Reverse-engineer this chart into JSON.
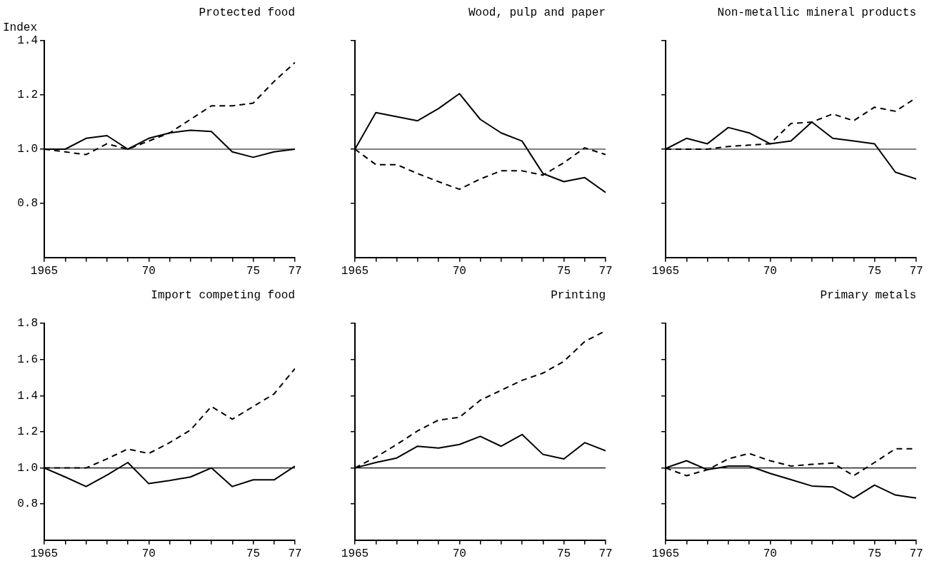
{
  "chart_data": [
    {
      "type": "line",
      "title": "Protected food",
      "ylabel": "Index",
      "x": [
        1965,
        1966,
        1967,
        1968,
        1969,
        1970,
        1971,
        1972,
        1973,
        1974,
        1975,
        1976,
        1977
      ],
      "xlim": [
        1965,
        1977
      ],
      "xticks": [
        {
          "value": 1965,
          "label": "1965"
        },
        {
          "value": 1966,
          "label": null
        },
        {
          "value": 1967,
          "label": null
        },
        {
          "value": 1968,
          "label": null
        },
        {
          "value": 1969,
          "label": null
        },
        {
          "value": 1970,
          "label": "70"
        },
        {
          "value": 1971,
          "label": null
        },
        {
          "value": 1972,
          "label": null
        },
        {
          "value": 1973,
          "label": null
        },
        {
          "value": 1974,
          "label": null
        },
        {
          "value": 1975,
          "label": "75"
        },
        {
          "value": 1976,
          "label": null
        },
        {
          "value": 1977,
          "label": "77"
        }
      ],
      "ylim": [
        0.6,
        1.4
      ],
      "yticks": [
        0.8,
        {
          "value": 1.0,
          "label": "1.0"
        },
        1.2,
        1.4
      ],
      "grid": false,
      "marker": "none",
      "ref_lines": [
        {
          "axis": "y",
          "value": 1.0,
          "color": "#000000"
        }
      ],
      "series": [
        {
          "color": "#000000",
          "line_style": "solid",
          "values": [
            1.0,
            1.0,
            1.04,
            1.05,
            1.0,
            1.04,
            1.06,
            1.07,
            1.065,
            0.99,
            0.97,
            0.99,
            1.0
          ]
        },
        {
          "color": "#000000",
          "line_style": "dashed",
          "values": [
            1.0,
            0.99,
            0.98,
            1.02,
            1.0,
            1.03,
            1.06,
            1.11,
            1.16,
            1.16,
            1.17,
            1.25,
            1.32
          ]
        }
      ]
    },
    {
      "type": "line",
      "title": "Wood, pulp and paper",
      "x": [
        1965,
        1966,
        1967,
        1968,
        1969,
        1970,
        1971,
        1972,
        1973,
        1974,
        1975,
        1976,
        1977
      ],
      "xlim": [
        1965,
        1977
      ],
      "xticks": [
        {
          "value": 1965,
          "label": "1965"
        },
        {
          "value": 1966,
          "label": null
        },
        {
          "value": 1967,
          "label": null
        },
        {
          "value": 1968,
          "label": null
        },
        {
          "value": 1969,
          "label": null
        },
        {
          "value": 1970,
          "label": "70"
        },
        {
          "value": 1971,
          "label": null
        },
        {
          "value": 1972,
          "label": null
        },
        {
          "value": 1973,
          "label": null
        },
        {
          "value": 1974,
          "label": null
        },
        {
          "value": 1975,
          "label": "75"
        },
        {
          "value": 1976,
          "label": null
        },
        {
          "value": 1977,
          "label": "77"
        }
      ],
      "ylim": [
        0.6,
        1.4
      ],
      "yticks": [
        0.8,
        1.0,
        1.2,
        1.4
      ],
      "tick_labels": "x",
      "grid": false,
      "marker": "none",
      "ref_lines": [
        {
          "axis": "y",
          "value": 1.0,
          "color": "#000000"
        }
      ],
      "series": [
        {
          "color": "#000000",
          "line_style": "solid",
          "values": [
            1.0,
            1.135,
            1.12,
            1.105,
            1.15,
            1.205,
            1.11,
            1.06,
            1.03,
            0.91,
            0.88,
            0.895,
            0.84
          ]
        },
        {
          "color": "#000000",
          "line_style": "dashed",
          "values": [
            1.0,
            0.943,
            0.943,
            0.91,
            0.88,
            0.852,
            0.89,
            0.92,
            0.92,
            0.904,
            0.95,
            1.005,
            0.98
          ]
        }
      ]
    },
    {
      "type": "line",
      "title": "Non-metallic mineral products",
      "x": [
        1965,
        1966,
        1967,
        1968,
        1969,
        1970,
        1971,
        1972,
        1973,
        1974,
        1975,
        1976,
        1977
      ],
      "xlim": [
        1965,
        1977
      ],
      "xticks": [
        {
          "value": 1965,
          "label": "1965"
        },
        {
          "value": 1966,
          "label": null
        },
        {
          "value": 1967,
          "label": null
        },
        {
          "value": 1968,
          "label": null
        },
        {
          "value": 1969,
          "label": null
        },
        {
          "value": 1970,
          "label": "70"
        },
        {
          "value": 1971,
          "label": null
        },
        {
          "value": 1972,
          "label": null
        },
        {
          "value": 1973,
          "label": null
        },
        {
          "value": 1974,
          "label": null
        },
        {
          "value": 1975,
          "label": "75"
        },
        {
          "value": 1976,
          "label": null
        },
        {
          "value": 1977,
          "label": "77"
        }
      ],
      "ylim": [
        0.6,
        1.4
      ],
      "yticks": [
        0.8,
        1.0,
        1.2,
        1.4
      ],
      "tick_labels": "x",
      "grid": false,
      "marker": "none",
      "ref_lines": [
        {
          "axis": "y",
          "value": 1.0,
          "color": "#000000"
        }
      ],
      "series": [
        {
          "color": "#000000",
          "line_style": "solid",
          "values": [
            1.0,
            1.04,
            1.02,
            1.08,
            1.06,
            1.02,
            1.03,
            1.1,
            1.04,
            1.03,
            1.02,
            0.915,
            0.89
          ]
        },
        {
          "color": "#000000",
          "line_style": "dashed",
          "values": [
            1.0,
            1.0,
            1.0,
            1.01,
            1.015,
            1.02,
            1.095,
            1.1,
            1.13,
            1.105,
            1.155,
            1.14,
            1.19
          ]
        }
      ]
    },
    {
      "type": "line",
      "title": "Import competing food",
      "x": [
        1965,
        1966,
        1967,
        1968,
        1969,
        1970,
        1971,
        1972,
        1973,
        1974,
        1975,
        1976,
        1977
      ],
      "xlim": [
        1965,
        1977
      ],
      "xticks": [
        {
          "value": 1965,
          "label": "1965"
        },
        {
          "value": 1966,
          "label": null
        },
        {
          "value": 1967,
          "label": null
        },
        {
          "value": 1968,
          "label": null
        },
        {
          "value": 1969,
          "label": null
        },
        {
          "value": 1970,
          "label": "70"
        },
        {
          "value": 1971,
          "label": null
        },
        {
          "value": 1972,
          "label": null
        },
        {
          "value": 1973,
          "label": null
        },
        {
          "value": 1974,
          "label": null
        },
        {
          "value": 1975,
          "label": "75"
        },
        {
          "value": 1976,
          "label": null
        },
        {
          "value": 1977,
          "label": "77"
        }
      ],
      "ylim": [
        0.6,
        1.8
      ],
      "yticks": [
        0.8,
        {
          "value": 1.0,
          "label": "1.0"
        },
        1.2,
        1.4,
        1.6,
        1.8
      ],
      "grid": false,
      "marker": "none",
      "ref_lines": [
        {
          "axis": "y",
          "value": 1.0,
          "color": "#000000"
        }
      ],
      "series": [
        {
          "color": "#000000",
          "line_style": "solid",
          "values": [
            1.0,
            0.95,
            0.897,
            0.96,
            1.03,
            0.913,
            0.93,
            0.95,
            1.0,
            0.897,
            0.934,
            0.934,
            1.01
          ]
        },
        {
          "color": "#000000",
          "line_style": "dashed",
          "values": [
            1.0,
            1.0,
            1.0,
            1.05,
            1.105,
            1.08,
            1.14,
            1.21,
            1.34,
            1.27,
            1.34,
            1.41,
            1.55
          ]
        }
      ]
    },
    {
      "type": "line",
      "title": "Printing",
      "x": [
        1965,
        1966,
        1967,
        1968,
        1969,
        1970,
        1971,
        1972,
        1973,
        1974,
        1975,
        1976,
        1977
      ],
      "xlim": [
        1965,
        1977
      ],
      "xticks": [
        {
          "value": 1965,
          "label": "1965"
        },
        {
          "value": 1966,
          "label": null
        },
        {
          "value": 1967,
          "label": null
        },
        {
          "value": 1968,
          "label": null
        },
        {
          "value": 1969,
          "label": null
        },
        {
          "value": 1970,
          "label": "70"
        },
        {
          "value": 1971,
          "label": null
        },
        {
          "value": 1972,
          "label": null
        },
        {
          "value": 1973,
          "label": null
        },
        {
          "value": 1974,
          "label": null
        },
        {
          "value": 1975,
          "label": "75"
        },
        {
          "value": 1976,
          "label": null
        },
        {
          "value": 1977,
          "label": "77"
        }
      ],
      "ylim": [
        0.6,
        1.8
      ],
      "yticks": [
        0.8,
        1.0,
        1.2,
        1.4,
        1.6,
        1.8
      ],
      "tick_labels": "x",
      "grid": false,
      "marker": "none",
      "ref_lines": [
        {
          "axis": "y",
          "value": 1.0,
          "color": "#000000"
        }
      ],
      "series": [
        {
          "color": "#000000",
          "line_style": "solid",
          "values": [
            1.0,
            1.03,
            1.055,
            1.12,
            1.11,
            1.13,
            1.175,
            1.12,
            1.185,
            1.075,
            1.05,
            1.14,
            1.095
          ]
        },
        {
          "color": "#000000",
          "line_style": "dashed",
          "values": [
            1.0,
            1.06,
            1.13,
            1.205,
            1.265,
            1.28,
            1.375,
            1.43,
            1.485,
            1.525,
            1.59,
            1.7,
            1.76
          ]
        }
      ]
    },
    {
      "type": "line",
      "title": "Primary metals",
      "x": [
        1965,
        1966,
        1967,
        1968,
        1969,
        1970,
        1971,
        1972,
        1973,
        1974,
        1975,
        1976,
        1977
      ],
      "xlim": [
        1965,
        1977
      ],
      "xticks": [
        {
          "value": 1965,
          "label": "1965"
        },
        {
          "value": 1966,
          "label": null
        },
        {
          "value": 1967,
          "label": null
        },
        {
          "value": 1968,
          "label": null
        },
        {
          "value": 1969,
          "label": null
        },
        {
          "value": 1970,
          "label": "70"
        },
        {
          "value": 1971,
          "label": null
        },
        {
          "value": 1972,
          "label": null
        },
        {
          "value": 1973,
          "label": null
        },
        {
          "value": 1974,
          "label": null
        },
        {
          "value": 1975,
          "label": "75"
        },
        {
          "value": 1976,
          "label": null
        },
        {
          "value": 1977,
          "label": "77"
        }
      ],
      "ylim": [
        0.6,
        1.8
      ],
      "yticks": [
        0.8,
        1.0,
        1.2,
        1.4,
        1.6,
        1.8
      ],
      "tick_labels": "x",
      "grid": false,
      "marker": "none",
      "ref_lines": [
        {
          "axis": "y",
          "value": 1.0,
          "color": "#000000"
        }
      ],
      "series": [
        {
          "color": "#000000",
          "line_style": "solid",
          "values": [
            1.0,
            1.04,
            0.99,
            1.01,
            1.01,
            0.97,
            0.935,
            0.9,
            0.895,
            0.833,
            0.905,
            0.85,
            0.833
          ]
        },
        {
          "color": "#000000",
          "line_style": "dashed",
          "values": [
            1.0,
            0.957,
            0.99,
            1.05,
            1.08,
            1.04,
            1.01,
            1.02,
            1.027,
            0.957,
            1.03,
            1.106,
            1.106
          ]
        }
      ]
    }
  ]
}
